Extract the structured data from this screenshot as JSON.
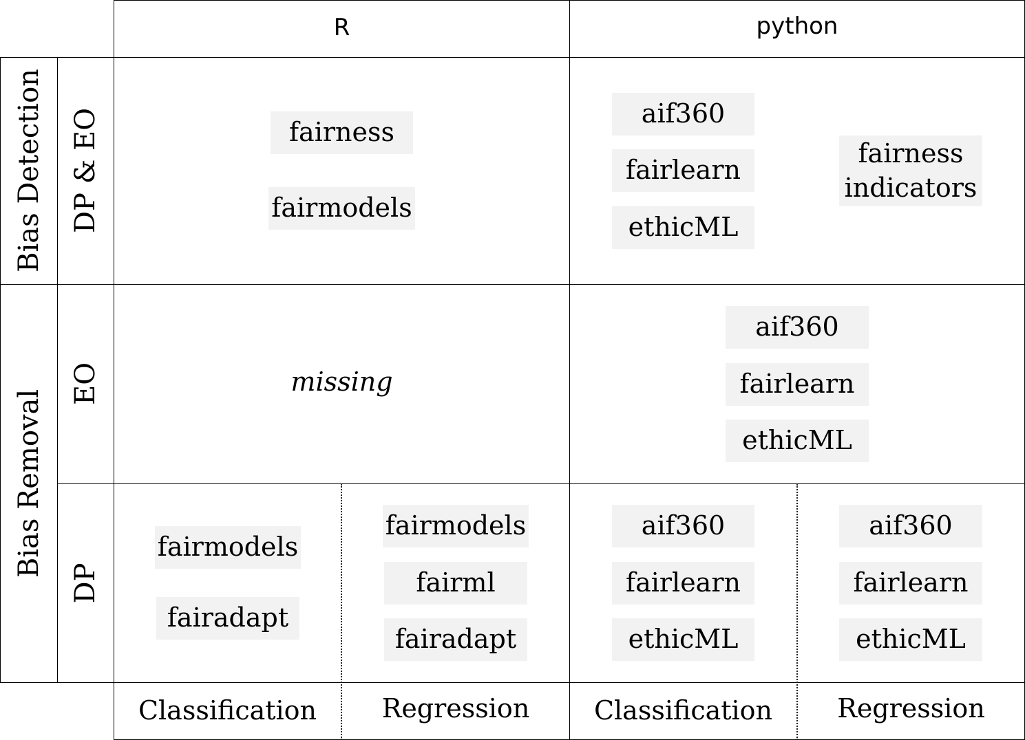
{
  "columns": {
    "r": "R",
    "python": "python"
  },
  "rows": {
    "bias_detection": "Bias Detection",
    "bias_removal": "Bias Removal",
    "dp_eo": "DP & EO",
    "eo": "EO",
    "dp": "DP"
  },
  "cells": {
    "detection_r": [
      "fairness",
      "fairmodels"
    ],
    "detection_python_left": [
      "aif360",
      "fairlearn",
      "ethicML"
    ],
    "detection_python_right": "fairness\nindicators",
    "eo_r_missing": "missing",
    "eo_python": [
      "aif360",
      "fairlearn",
      "ethicML"
    ],
    "dp_r_classification": [
      "fairmodels",
      "fairadapt"
    ],
    "dp_r_regression": [
      "fairmodels",
      "fairml",
      "fairadapt"
    ],
    "dp_python_classification": [
      "aif360",
      "fairlearn",
      "ethicML"
    ],
    "dp_python_regression": [
      "aif360",
      "fairlearn",
      "ethicML"
    ]
  },
  "footer": {
    "r_classification": "Classification",
    "r_regression": "Regression",
    "python_classification": "Classification",
    "python_regression": "Regression"
  }
}
